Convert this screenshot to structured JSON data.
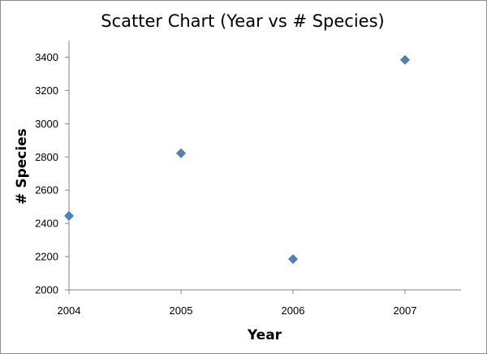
{
  "chart_data": {
    "type": "scatter",
    "title": "Scatter Chart (Year vs # Species)",
    "xlabel": "Year",
    "ylabel": "# Species",
    "xlim": [
      2004,
      2007.5
    ],
    "ylim": [
      2000,
      3500
    ],
    "x_ticks": [
      2004,
      2005,
      2006,
      2007
    ],
    "y_ticks": [
      2000,
      2200,
      2400,
      2600,
      2800,
      3000,
      3200,
      3400
    ],
    "grid": false,
    "legend": "none",
    "series": [
      {
        "color": "#4F81BD",
        "marker": "diamond",
        "points": [
          {
            "x": 2004,
            "y": 2445
          },
          {
            "x": 2005,
            "y": 2822
          },
          {
            "x": 2006,
            "y": 2185
          },
          {
            "x": 2007,
            "y": 3384
          }
        ]
      }
    ]
  }
}
